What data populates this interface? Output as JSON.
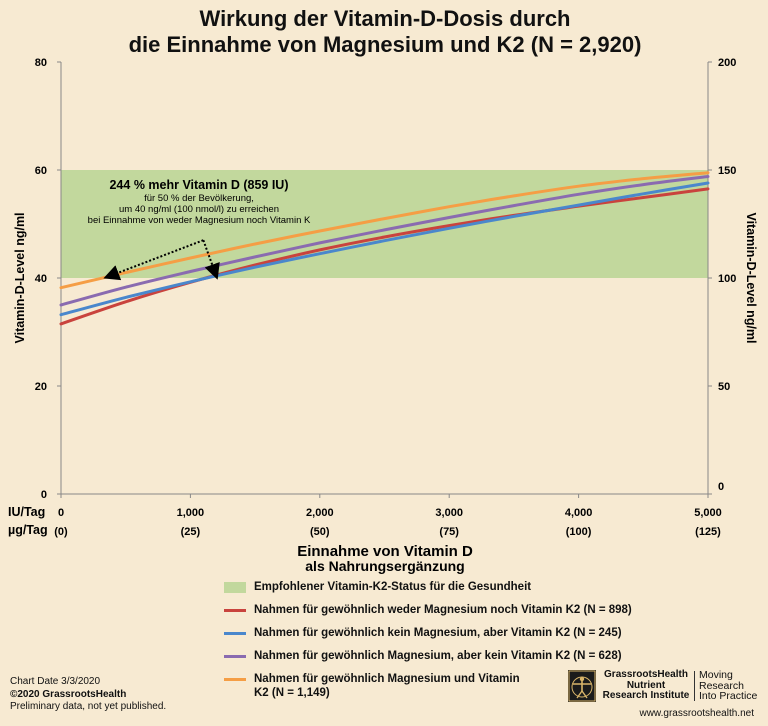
{
  "title_line1": "Wirkung der Vitamin-D-Dosis durch",
  "title_line2": "die Einnahme von Magnesium und K2 (N = 2,920)",
  "chart_data": {
    "type": "line",
    "x": [
      0,
      500,
      1000,
      1500,
      2000,
      2500,
      3000,
      3500,
      4000,
      4500,
      5000
    ],
    "xlim": [
      0,
      5000
    ],
    "ylim": [
      0,
      80
    ],
    "ylim_right": [
      0,
      200
    ],
    "yticks": [
      0,
      20,
      40,
      60,
      80
    ],
    "yticks_right": [
      0,
      50,
      100,
      150,
      200
    ],
    "ylabel": "Vitamin-D-Level ng/ml",
    "ylabel_right": "Vitamin-D-Level ng/ml",
    "xtick_row1_label": "IU/Tag",
    "xtick_row2_label": "µg/Tag",
    "xticks": [
      0,
      1000,
      2000,
      3000,
      4000,
      5000
    ],
    "xtick_labels": [
      "0",
      "1,000",
      "2,000",
      "3,000",
      "4,000",
      "5,000"
    ],
    "xtick_labels2": [
      "(0)",
      "(25)",
      "(50)",
      "(75)",
      "(100)",
      "(125)"
    ],
    "xlabel_line1": "Einnahme von Vitamin D",
    "xlabel_line2": "als Nahrungsergänzung",
    "band": {
      "from": 40,
      "to": 60,
      "color": "#c2d89d",
      "label": "Empfohlener Vitamin-K2-Status für die Gesundheit"
    },
    "series": [
      {
        "name": "Nahmen für gewöhnlich weder Magnesium noch Vitamin K2 (N = 898)",
        "color": "#c9433d",
        "values": [
          31.5,
          35.6,
          39.2,
          42.4,
          45.2,
          47.6,
          49.7,
          51.6,
          53.3,
          54.9,
          56.5
        ]
      },
      {
        "name": "Nahmen für gewöhnlich kein Magnesium, aber Vitamin K2 (N = 245)",
        "color": "#4a87cc",
        "values": [
          33.2,
          36.4,
          39.3,
          42.0,
          44.5,
          46.9,
          49.2,
          51.4,
          53.5,
          55.6,
          57.6
        ]
      },
      {
        "name": "Nahmen für gewöhnlich Magnesium, aber kein Vitamin K2 (N = 628)",
        "color": "#8a6bb0",
        "values": [
          35.0,
          38.3,
          41.2,
          43.9,
          46.5,
          48.9,
          51.2,
          53.4,
          55.5,
          57.3,
          58.8
        ]
      },
      {
        "name": "Nahmen für gewöhnlich Magnesium und Vitamin K2 (N = 1,149)",
        "color": "#f59e45",
        "values": [
          38.2,
          41.0,
          43.7,
          46.3,
          48.7,
          51.0,
          53.2,
          55.2,
          57.0,
          58.4,
          59.5
        ]
      }
    ],
    "annotation": {
      "headline": "244 % mehr Vitamin D (859 IU)",
      "line2": "für 50 % der Bevölkerung,",
      "line3": "um 40 ng/ml (100 nmol/l) zu erreichen",
      "line4": "bei Einnahme von weder Magnesium noch Vitamin K",
      "from_x": 1100,
      "from_y": 47,
      "arrow1_x": 341,
      "arrow1_y": 40,
      "arrow2_x": 1200,
      "arrow2_y": 40
    }
  },
  "footer": {
    "chart_date": "Chart Date 3/3/2020",
    "copyright": "©2020 GrassrootsHealth",
    "note": "Preliminary data, not yet published.",
    "logo_line1": "GrassrootsHealth",
    "logo_line2": "Nutrient",
    "logo_line3": "Research Institute",
    "tagline1": "Moving",
    "tagline2": "Research",
    "tagline3": "Into Practice",
    "website": "www.grassrootshealth.net"
  }
}
